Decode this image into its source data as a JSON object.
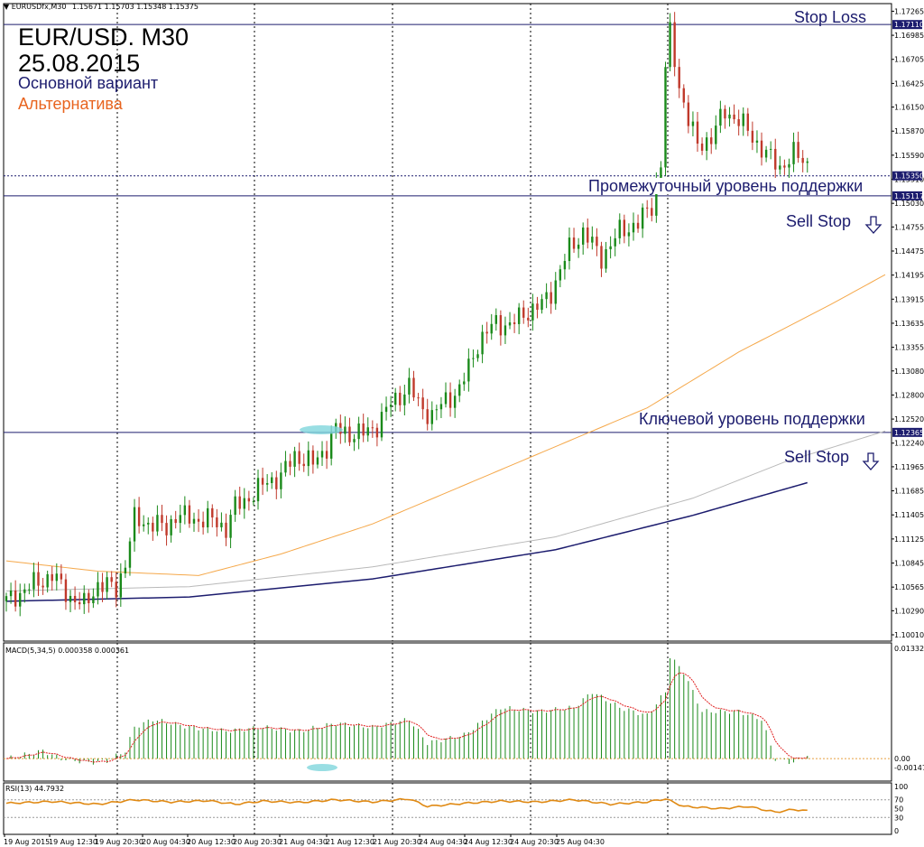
{
  "header": {
    "symbol_info": "EURUSDfx,M30",
    "ohlc": "1.15671 1.15703 1.15348 1.15375",
    "title_line1": "EUR/USD. M30",
    "title_line2": "25.08.2015",
    "legend_main": "Основной вариант",
    "legend_alt": "Альтернатива"
  },
  "annotations": {
    "stop_loss": "Stop Loss",
    "intermediate_support": "Промежуточный уровень поддержки",
    "sell_stop_1": "Sell Stop",
    "key_support": "Ключевой уровень поддержки",
    "sell_stop_2": "Sell Stop"
  },
  "colors": {
    "bull": "#1a8a1a",
    "bear": "#c0392b",
    "ma_orange": "#f5a84a",
    "ma_grey": "#b9b9b9",
    "ma_navy": "#1c1c6e",
    "level_line": "#1c1c6e",
    "annotation_text": "#1c1c6e",
    "alt_text": "#e8641f",
    "highlight": "#7fd6dc",
    "rsi_line": "#e08a14",
    "macd_signal": "#e02020"
  },
  "icons": {
    "sell_arrow": "down-arrow-outline-icon"
  },
  "chart_data": [
    {
      "type": "candlestick",
      "title": "EUR/USD. M30",
      "ylim": [
        1.1001,
        1.1728
      ],
      "price_ticks": [
        "1.17265",
        "1.16985",
        "1.16705",
        "1.16425",
        "1.16150",
        "1.15870",
        "1.15590",
        "1.15310",
        "1.15030",
        "1.14755",
        "1.14475",
        "1.14195",
        "1.13915",
        "1.13635",
        "1.13355",
        "1.13080",
        "1.12800",
        "1.12520",
        "1.12240",
        "1.11965",
        "1.11685",
        "1.11405",
        "1.11125",
        "1.10845",
        "1.10565",
        "1.10290",
        "1.10010"
      ],
      "time_ticks": [
        "19 Aug 2015",
        "19 Aug 12:30",
        "19 Aug 20:30",
        "20 Aug 04:30",
        "20 Aug 12:30",
        "20 Aug 20:30",
        "21 Aug 04:30",
        "21 Aug 12:30",
        "21 Aug 20:30",
        "24 Aug 04:30",
        "24 Aug 12:30",
        "24 Aug 20:30",
        "25 Aug 04:30"
      ],
      "levels": [
        {
          "label": "1.17110",
          "value": 1.1711,
          "style": "solid"
        },
        {
          "label": "1.15350",
          "value": 1.1535,
          "style": "dotted"
        },
        {
          "label": "1.15117",
          "value": 1.15117,
          "style": "solid"
        },
        {
          "label": "1.12365",
          "value": 1.12365,
          "style": "solid"
        }
      ],
      "close_path": [
        [
          0,
          1.104
        ],
        [
          6,
          1.106
        ],
        [
          10,
          1.107
        ],
        [
          14,
          1.1045
        ],
        [
          17,
          1.1035
        ],
        [
          20,
          1.106
        ],
        [
          24,
          1.1055
        ],
        [
          26,
          1.1085
        ],
        [
          28,
          1.1135
        ],
        [
          32,
          1.113
        ],
        [
          35,
          1.1125
        ],
        [
          37,
          1.114
        ],
        [
          42,
          1.1135
        ],
        [
          45,
          1.1135
        ],
        [
          48,
          1.1125
        ],
        [
          50,
          1.115
        ],
        [
          54,
          1.1165
        ],
        [
          57,
          1.118
        ],
        [
          60,
          1.1185
        ],
        [
          63,
          1.121
        ],
        [
          67,
          1.12
        ],
        [
          70,
          1.122
        ],
        [
          72,
          1.124
        ],
        [
          75,
          1.1235
        ],
        [
          78,
          1.1235
        ],
        [
          81,
          1.1245
        ],
        [
          84,
          1.127
        ],
        [
          88,
          1.129
        ],
        [
          90,
          1.127
        ],
        [
          93,
          1.1255
        ],
        [
          96,
          1.1275
        ],
        [
          99,
          1.1285
        ],
        [
          103,
          1.134
        ],
        [
          107,
          1.1365
        ],
        [
          110,
          1.136
        ],
        [
          113,
          1.1375
        ],
        [
          117,
          1.1385
        ],
        [
          119,
          1.14
        ],
        [
          123,
          1.145
        ],
        [
          126,
          1.147
        ],
        [
          130,
          1.144
        ],
        [
          134,
          1.147
        ],
        [
          138,
          1.148
        ],
        [
          141,
          1.15
        ],
        [
          143,
          1.155
        ],
        [
          144,
          1.166
        ],
        [
          145,
          1.17
        ],
        [
          147,
          1.164
        ],
        [
          149,
          1.16
        ],
        [
          151,
          1.157
        ],
        [
          154,
          1.158
        ],
        [
          157,
          1.161
        ],
        [
          160,
          1.16
        ],
        [
          163,
          1.158
        ],
        [
          166,
          1.156
        ],
        [
          169,
          1.1545
        ],
        [
          172,
          1.156
        ],
        [
          175,
          1.155
        ]
      ],
      "ma_orange": [
        [
          0,
          1.1087
        ],
        [
          20,
          1.1075
        ],
        [
          42,
          1.107
        ],
        [
          60,
          1.1095
        ],
        [
          80,
          1.113
        ],
        [
          100,
          1.1175
        ],
        [
          120,
          1.122
        ],
        [
          140,
          1.1265
        ],
        [
          160,
          1.133
        ],
        [
          180,
          1.1385
        ],
        [
          192,
          1.142
        ]
      ],
      "ma_grey": [
        [
          0,
          1.1052
        ],
        [
          40,
          1.1057
        ],
        [
          80,
          1.108
        ],
        [
          120,
          1.1115
        ],
        [
          150,
          1.116
        ],
        [
          170,
          1.1202
        ],
        [
          192,
          1.1238
        ]
      ],
      "ma_navy": [
        [
          0,
          1.104
        ],
        [
          40,
          1.1045
        ],
        [
          80,
          1.1066
        ],
        [
          120,
          1.11
        ],
        [
          150,
          1.114
        ],
        [
          175,
          1.1178
        ]
      ]
    },
    {
      "type": "bar",
      "name": "MACD(5,34,5) 0.000358 0.000361",
      "ylim": [
        -0.00147,
        0.013323
      ],
      "ticks": [
        "0.013323",
        "0.00",
        "-0.00147"
      ],
      "path": [
        [
          0,
          0.0
        ],
        [
          8,
          0.001
        ],
        [
          12,
          0.0
        ],
        [
          18,
          -0.0005
        ],
        [
          22,
          -0.0003
        ],
        [
          26,
          0.001
        ],
        [
          28,
          0.004
        ],
        [
          32,
          0.005
        ],
        [
          40,
          0.004
        ],
        [
          48,
          0.0035
        ],
        [
          56,
          0.004
        ],
        [
          64,
          0.0035
        ],
        [
          72,
          0.0045
        ],
        [
          80,
          0.004
        ],
        [
          88,
          0.005
        ],
        [
          92,
          0.002
        ],
        [
          96,
          0.0025
        ],
        [
          100,
          0.003
        ],
        [
          108,
          0.0065
        ],
        [
          116,
          0.006
        ],
        [
          124,
          0.0065
        ],
        [
          128,
          0.0085
        ],
        [
          134,
          0.0065
        ],
        [
          140,
          0.0055
        ],
        [
          144,
          0.0085
        ],
        [
          145,
          0.013
        ],
        [
          148,
          0.011
        ],
        [
          152,
          0.006
        ],
        [
          160,
          0.006
        ],
        [
          165,
          0.005
        ],
        [
          168,
          0.0
        ],
        [
          172,
          -0.0005
        ],
        [
          175,
          0.0005
        ]
      ]
    },
    {
      "type": "line",
      "name": "RSI(13) 44.7932",
      "ylim": [
        0,
        100
      ],
      "ticks": [
        "100",
        "70",
        "50",
        "30",
        "0"
      ],
      "path": [
        [
          0,
          62
        ],
        [
          10,
          66
        ],
        [
          20,
          60
        ],
        [
          28,
          70
        ],
        [
          36,
          65
        ],
        [
          44,
          68
        ],
        [
          50,
          60
        ],
        [
          56,
          67
        ],
        [
          64,
          64
        ],
        [
          72,
          70
        ],
        [
          80,
          65
        ],
        [
          88,
          72
        ],
        [
          92,
          55
        ],
        [
          100,
          62
        ],
        [
          108,
          67
        ],
        [
          116,
          65
        ],
        [
          124,
          70
        ],
        [
          132,
          60
        ],
        [
          140,
          65
        ],
        [
          144,
          72
        ],
        [
          148,
          55
        ],
        [
          156,
          50
        ],
        [
          162,
          55
        ],
        [
          168,
          42
        ],
        [
          172,
          48
        ],
        [
          175,
          44.79
        ]
      ]
    }
  ]
}
